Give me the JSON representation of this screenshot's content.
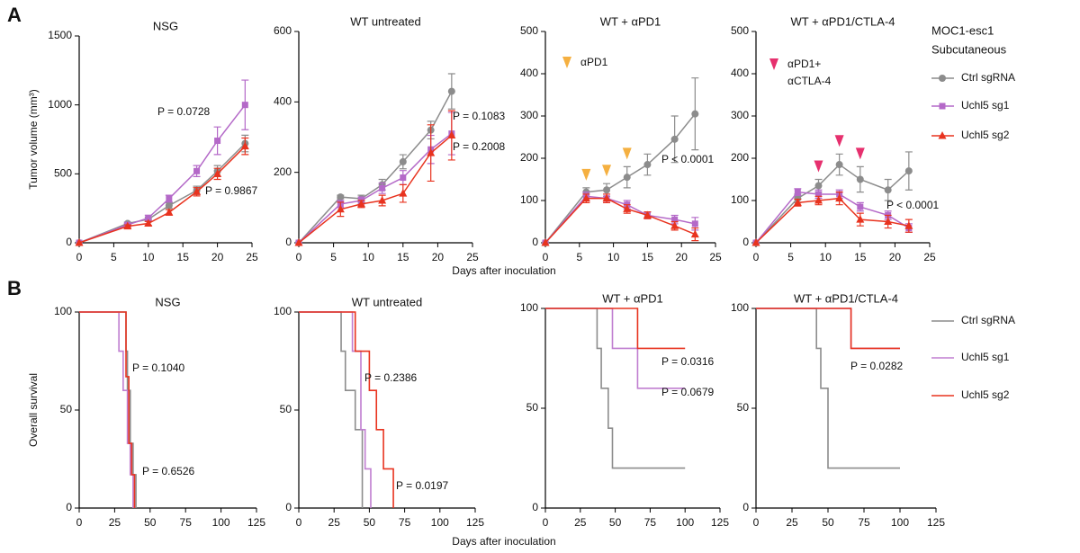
{
  "panel_labels": [
    "A",
    "B"
  ],
  "x_axis_labels": [
    "Days after inoculation",
    "Days after inoculation"
  ],
  "legend_title_lines": [
    "MOC1-esc1",
    "Subcutaneous"
  ],
  "chart_data": [
    {
      "type": "line",
      "title": "NSG",
      "ylabel": "Tumor volume (mm³)",
      "x": [
        0,
        7,
        10,
        13,
        17,
        20,
        24
      ],
      "xlim": [
        0,
        25
      ],
      "xticks": [
        0,
        5,
        10,
        15,
        20,
        25
      ],
      "ylim": [
        0,
        1500
      ],
      "yticks": [
        0,
        500,
        1000,
        1500
      ],
      "series": [
        {
          "name": "Ctrl sgRNA",
          "color": "#8c8c8c",
          "marker": "circle",
          "values": [
            0,
            140,
            170,
            270,
            380,
            520,
            720
          ],
          "errors": [
            0,
            10,
            15,
            20,
            30,
            40,
            60
          ]
        },
        {
          "name": "Uchl5 sg1",
          "color": "#b469c8",
          "marker": "square",
          "values": [
            0,
            130,
            180,
            320,
            520,
            740,
            1000
          ],
          "errors": [
            0,
            10,
            20,
            25,
            40,
            100,
            180
          ]
        },
        {
          "name": "Uchl5 sg2",
          "color": "#e8331f",
          "marker": "triangle",
          "values": [
            0,
            120,
            140,
            220,
            370,
            500,
            700
          ],
          "errors": [
            0,
            10,
            15,
            20,
            30,
            40,
            60
          ]
        }
      ],
      "annotations": [
        "P = 0.0728",
        "P = 0.9867"
      ]
    },
    {
      "type": "line",
      "title": "WT untreated",
      "x": [
        0,
        6,
        9,
        12,
        15,
        19,
        22
      ],
      "xlim": [
        0,
        25
      ],
      "xticks": [
        0,
        5,
        10,
        15,
        20,
        25
      ],
      "ylim": [
        0,
        600
      ],
      "yticks": [
        0,
        200,
        400,
        600
      ],
      "series": [
        {
          "name": "Ctrl sgRNA",
          "color": "#8c8c8c",
          "marker": "circle",
          "values": [
            0,
            130,
            125,
            165,
            230,
            320,
            430
          ],
          "errors": [
            0,
            5,
            10,
            15,
            20,
            25,
            50
          ]
        },
        {
          "name": "Uchl5 sg1",
          "color": "#b469c8",
          "marker": "square",
          "values": [
            0,
            110,
            120,
            155,
            185,
            265,
            310
          ],
          "errors": [
            0,
            10,
            10,
            15,
            20,
            40,
            60
          ]
        },
        {
          "name": "Uchl5 sg2",
          "color": "#e8331f",
          "marker": "triangle",
          "values": [
            0,
            95,
            110,
            120,
            140,
            255,
            305
          ],
          "errors": [
            0,
            20,
            10,
            15,
            25,
            80,
            70
          ]
        }
      ],
      "annotations": [
        "P = 0.1083",
        "P = 0.2008"
      ]
    },
    {
      "type": "line",
      "title": "WT + αPD1",
      "x": [
        0,
        6,
        9,
        12,
        15,
        19,
        22
      ],
      "xlim": [
        0,
        25
      ],
      "xticks": [
        0,
        5,
        10,
        15,
        20,
        25
      ],
      "ylim": [
        0,
        500
      ],
      "yticks": [
        0,
        100,
        200,
        300,
        400,
        500
      ],
      "series": [
        {
          "name": "Ctrl sgRNA",
          "color": "#8c8c8c",
          "marker": "circle",
          "values": [
            0,
            120,
            125,
            155,
            185,
            245,
            305
          ],
          "errors": [
            0,
            10,
            15,
            25,
            25,
            55,
            85
          ]
        },
        {
          "name": "Uchl5 sg1",
          "color": "#b469c8",
          "marker": "square",
          "values": [
            0,
            110,
            105,
            90,
            65,
            55,
            45
          ],
          "errors": [
            0,
            10,
            10,
            10,
            8,
            10,
            15
          ]
        },
        {
          "name": "Uchl5 sg2",
          "color": "#e8331f",
          "marker": "triangle",
          "values": [
            0,
            105,
            105,
            80,
            65,
            40,
            20
          ],
          "errors": [
            0,
            10,
            10,
            10,
            8,
            10,
            15
          ]
        }
      ],
      "annotations": [
        "P < 0.0001"
      ],
      "treatment_days": [
        6,
        9,
        12
      ],
      "treatment_label_lines": [
        "αPD1"
      ],
      "treatment_color": "#f5b041"
    },
    {
      "type": "line",
      "title": "WT + αPD1/CTLA-4",
      "x": [
        0,
        6,
        9,
        12,
        15,
        19,
        22
      ],
      "xlim": [
        0,
        25
      ],
      "xticks": [
        0,
        5,
        10,
        15,
        20,
        25
      ],
      "ylim": [
        0,
        500
      ],
      "yticks": [
        0,
        100,
        200,
        300,
        400,
        500
      ],
      "series": [
        {
          "name": "Ctrl sgRNA",
          "color": "#8c8c8c",
          "marker": "circle",
          "values": [
            0,
            105,
            135,
            185,
            150,
            125,
            170
          ],
          "errors": [
            0,
            10,
            15,
            25,
            30,
            25,
            45
          ]
        },
        {
          "name": "Uchl5 sg1",
          "color": "#b469c8",
          "marker": "square",
          "values": [
            0,
            120,
            115,
            115,
            85,
            65,
            35
          ],
          "errors": [
            0,
            8,
            10,
            10,
            10,
            10,
            10
          ]
        },
        {
          "name": "Uchl5 sg2",
          "color": "#e8331f",
          "marker": "triangle",
          "values": [
            0,
            95,
            100,
            105,
            55,
            50,
            40
          ],
          "errors": [
            0,
            8,
            10,
            15,
            15,
            15,
            15
          ]
        }
      ],
      "annotations": [
        "P < 0.0001"
      ],
      "treatment_days": [
        9,
        12,
        15
      ],
      "treatment_label_lines": [
        "αPD1+",
        "αCTLA-4"
      ],
      "treatment_color": "#e6306e"
    },
    {
      "type": "step",
      "title": "NSG",
      "ylabel": "Overall survival",
      "xlim": [
        0,
        125
      ],
      "xticks": [
        0,
        25,
        50,
        75,
        100,
        125
      ],
      "ylim": [
        0,
        100
      ],
      "yticks": [
        0,
        50,
        100
      ],
      "series": [
        {
          "name": "Ctrl sgRNA",
          "color": "#8c8c8c",
          "x": [
            0,
            33,
            34,
            36,
            38,
            40
          ],
          "values": [
            100,
            80,
            60,
            33,
            17,
            0
          ]
        },
        {
          "name": "Uchl5 sg1",
          "color": "#c07ed0",
          "x": [
            0,
            28,
            31,
            34,
            36,
            38
          ],
          "values": [
            100,
            80,
            60,
            33,
            17,
            0
          ]
        },
        {
          "name": "Uchl5 sg2",
          "color": "#e8331f",
          "x": [
            0,
            33,
            35,
            37,
            39
          ],
          "values": [
            100,
            67,
            33,
            17,
            0
          ]
        }
      ],
      "annotations": [
        "P = 0.1040",
        "P = 0.6526"
      ]
    },
    {
      "type": "step",
      "title": "WT untreated",
      "xlim": [
        0,
        125
      ],
      "xticks": [
        0,
        25,
        50,
        75,
        100,
        125
      ],
      "ylim": [
        0,
        100
      ],
      "yticks": [
        0,
        50,
        100
      ],
      "series": [
        {
          "name": "Ctrl sgRNA",
          "color": "#8c8c8c",
          "x": [
            0,
            30,
            33,
            40,
            45
          ],
          "values": [
            100,
            80,
            60,
            40,
            0
          ]
        },
        {
          "name": "Uchl5 sg1",
          "color": "#c07ed0",
          "x": [
            0,
            38,
            44,
            47,
            51
          ],
          "values": [
            100,
            80,
            40,
            20,
            0
          ]
        },
        {
          "name": "Uchl5 sg2",
          "color": "#e8331f",
          "x": [
            0,
            40,
            50,
            55,
            60,
            67
          ],
          "values": [
            100,
            80,
            60,
            40,
            20,
            0
          ]
        }
      ],
      "annotations": [
        "P = 0.2386",
        "P = 0.0197"
      ]
    },
    {
      "type": "step",
      "title": "WT + αPD1",
      "xlim": [
        0,
        125
      ],
      "xticks": [
        0,
        25,
        50,
        75,
        100,
        125
      ],
      "ylim": [
        0,
        100
      ],
      "yticks": [
        0,
        50,
        100
      ],
      "series": [
        {
          "name": "Ctrl sgRNA",
          "color": "#8c8c8c",
          "x": [
            0,
            37,
            40,
            45,
            48,
            100
          ],
          "values": [
            100,
            80,
            60,
            40,
            20,
            20
          ]
        },
        {
          "name": "Uchl5 sg1",
          "color": "#c07ed0",
          "x": [
            0,
            48,
            66,
            100
          ],
          "values": [
            100,
            80,
            60,
            60
          ]
        },
        {
          "name": "Uchl5 sg2",
          "color": "#e8331f",
          "x": [
            0,
            66,
            100
          ],
          "values": [
            100,
            80,
            80
          ]
        }
      ],
      "annotations": [
        "P = 0.0316",
        "P = 0.0679"
      ]
    },
    {
      "type": "step",
      "title": "WT + αPD1/CTLA-4",
      "xlim": [
        0,
        125
      ],
      "xticks": [
        0,
        25,
        50,
        75,
        100,
        125
      ],
      "ylim": [
        0,
        100
      ],
      "yticks": [
        0,
        50,
        100
      ],
      "series": [
        {
          "name": "Ctrl sgRNA",
          "color": "#8c8c8c",
          "x": [
            0,
            42,
            45,
            50,
            100
          ],
          "values": [
            100,
            80,
            60,
            20,
            20
          ]
        },
        {
          "name": "Uchl5 sg1",
          "color": "#c07ed0",
          "x": [
            0,
            66,
            100
          ],
          "values": [
            100,
            80,
            80
          ]
        },
        {
          "name": "Uchl5 sg2",
          "color": "#e8331f",
          "x": [
            0,
            66,
            100
          ],
          "values": [
            100,
            80,
            80
          ]
        }
      ],
      "annotations": [
        "P = 0.0282"
      ]
    }
  ]
}
